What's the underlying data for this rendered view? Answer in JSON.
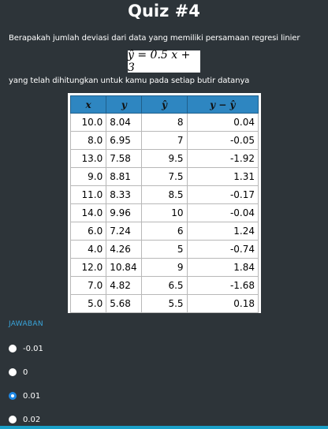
{
  "quiz": {
    "title": "Quiz #4",
    "question": "Berapakah jumlah deviasi dari data yang memiliki persamaan regresi linier",
    "formula": "ŷ = 0.5 x + 3",
    "subtext": "yang telah dihitungkan untuk kamu pada setiap butir datanya"
  },
  "table": {
    "headers": [
      "x",
      "y",
      "ŷ",
      "y − ŷ"
    ],
    "rows": [
      [
        "10.0",
        "8.04",
        "8",
        "0.04"
      ],
      [
        "8.0",
        "6.95",
        "7",
        "-0.05"
      ],
      [
        "13.0",
        "7.58",
        "9.5",
        "-1.92"
      ],
      [
        "9.0",
        "8.81",
        "7.5",
        "1.31"
      ],
      [
        "11.0",
        "8.33",
        "8.5",
        "-0.17"
      ],
      [
        "14.0",
        "9.96",
        "10",
        "-0.04"
      ],
      [
        "6.0",
        "7.24",
        "6",
        "1.24"
      ],
      [
        "4.0",
        "4.26",
        "5",
        "-0.74"
      ],
      [
        "12.0",
        "10.84",
        "9",
        "1.84"
      ],
      [
        "7.0",
        "4.82",
        "6.5",
        "-1.68"
      ],
      [
        "5.0",
        "5.68",
        "5.5",
        "0.18"
      ]
    ]
  },
  "answer": {
    "label": "JAWABAN",
    "options": [
      {
        "label": "-0.01",
        "selected": false
      },
      {
        "label": "0",
        "selected": false
      },
      {
        "label": "0.01",
        "selected": true
      },
      {
        "label": "0.02",
        "selected": false
      }
    ]
  },
  "colors": {
    "background": "#2d3439",
    "table_header": "#2e86c1",
    "accent": "#3aa6dc",
    "radio_selected": "#1e88e5"
  }
}
